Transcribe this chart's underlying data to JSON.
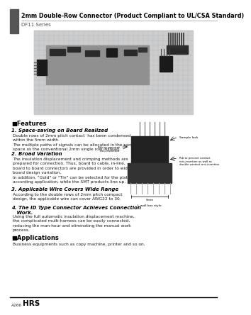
{
  "title": "2mm Double-Row Connector (Product Compliant to UL/CSA Standard)",
  "series": "DF11 Series",
  "bg_color": "#ffffff",
  "header_bar_color": "#555555",
  "title_color": "#000000",
  "features_title": "■Features",
  "feature1_title": "1. Space-saving on Board Realized",
  "feature1_text": "Double rows of 2mm pitch contact  has been condensed\nwithin the 5mm width.\nThe multiple paths of signals can be allocated in the same\nspace as the conventional 2mm single row instead.",
  "feature2_title": "2. Broad Variation",
  "feature2_text": "The insulation displacement and crimping methods are\nprepared for connection. Thus, board to cable, in-line,\nboard to board connectors are provided in order to widen a\nboard design variation.\nIn addition, \"Gold\" or \"Tin\" can be selected for the plating\naccording application, while the SMT products line up.",
  "feature3_title": "3. Applicable Wire Covers Wide Range",
  "feature3_text": "According to the double rows of 2mm pitch compact\ndesign, the applicable wire can cover AWG22 to 30.",
  "feature4_title": "4. The ID Type Connector Achieves Connection\n   Work.",
  "feature4_text": "Using the full automatic insulation displacement machine,\nthe complicated multi-harness can be easily connected,\nreducing the man-hour and eliminating the manual work\nprocess.",
  "applications_title": "■Applications",
  "applications_text": "Business equipments such as copy machine, printer and so on.",
  "footer_page": "A266",
  "footer_brand": "HRS"
}
